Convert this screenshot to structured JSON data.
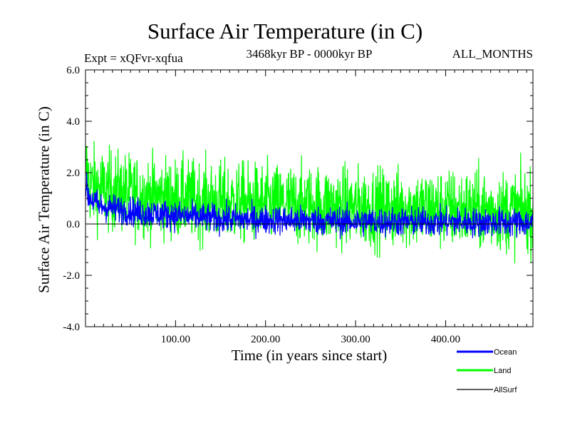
{
  "chart_data": {
    "type": "line",
    "title": "Surface Air Temperature (in C)",
    "experiment": "Expt = xQFvr-xqfua",
    "period": "3468kyr BP - 0000kyr BP",
    "months": "ALL_MONTHS",
    "xlabel": "Time (in years since start)",
    "ylabel": "Surface Air Temperature (in C)",
    "xlim": [
      0,
      497
    ],
    "ylim": [
      -4.0,
      6.0
    ],
    "xticks": [
      100,
      200,
      300,
      400
    ],
    "xtick_labels": [
      "100.00",
      "200.00",
      "300.00",
      "400.00"
    ],
    "yticks": [
      -4.0,
      -2.0,
      0.0,
      2.0,
      4.0,
      6.0
    ],
    "ytick_labels": [
      "-4.0",
      "-2.0",
      "0.0",
      "2.0",
      "4.0",
      "6.0"
    ],
    "series": [
      {
        "name": "Land",
        "color": "#00ff00",
        "description": "high-variance noise around a decaying mean",
        "mean_x": [
          0,
          5,
          20,
          60,
          150,
          300,
          497
        ],
        "mean_y": [
          2.3,
          1.5,
          1.35,
          1.1,
          0.85,
          0.65,
          0.5
        ],
        "amplitude": 1.05
      },
      {
        "name": "Ocean",
        "color": "#0000ff",
        "description": "low-variance noise around a decaying mean",
        "mean_x": [
          0,
          3,
          15,
          60,
          150,
          300,
          497
        ],
        "mean_y": [
          1.5,
          1.1,
          0.7,
          0.45,
          0.2,
          0.1,
          0.05
        ],
        "amplitude": 0.38
      },
      {
        "name": "AllSurf",
        "color": "#000000",
        "description": "flat line near zero",
        "mean_x": [
          0,
          497
        ],
        "mean_y": [
          0.0,
          0.0
        ],
        "amplitude": 0
      }
    ],
    "legend": [
      {
        "label": "Ocean",
        "color": "#0000ff"
      },
      {
        "label": "Land",
        "color": "#00ff00"
      },
      {
        "label": "AllSurf",
        "color": "#000000"
      }
    ],
    "legend_position": "bottom-right"
  }
}
